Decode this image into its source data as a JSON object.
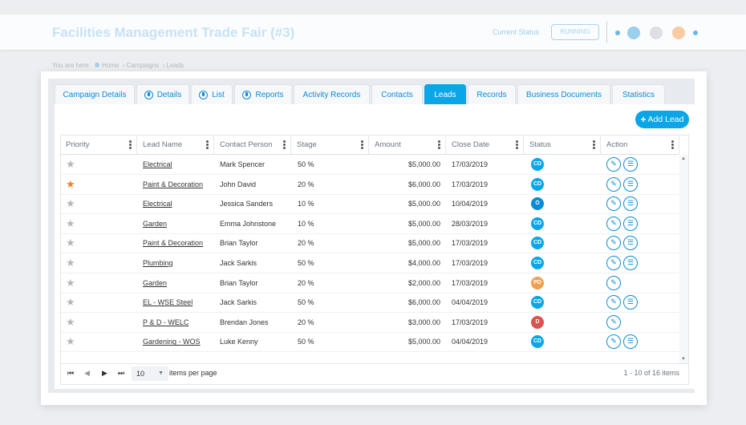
{
  "header": {
    "title": "Facilities Management Trade Fair (#3)",
    "status_label": "Current Status",
    "status_value": "RUNNING"
  },
  "breadcrumb": {
    "prefix": "You are here:",
    "items": [
      "Home",
      "Campaigns",
      "Leads"
    ]
  },
  "tabs": [
    {
      "label": "Campaign Details",
      "icon": "none",
      "active": false
    },
    {
      "label": "Details",
      "icon": "globe-icon",
      "active": false
    },
    {
      "label": "List",
      "icon": "globe-icon",
      "active": false
    },
    {
      "label": "Reports",
      "icon": "globe-icon",
      "active": false
    },
    {
      "label": "Activity Records",
      "icon": "none",
      "active": false
    },
    {
      "label": "Contacts",
      "icon": "none",
      "active": false
    },
    {
      "label": "Leads",
      "icon": "none",
      "active": true
    },
    {
      "label": "Records",
      "icon": "none",
      "active": false
    },
    {
      "label": "Business Documents",
      "icon": "none",
      "active": false
    },
    {
      "label": "Statistics",
      "icon": "none",
      "active": false
    }
  ],
  "add_button": {
    "label": "Add Lead"
  },
  "table": {
    "columns": [
      "Priority",
      "Lead Name",
      "Contact Person",
      "Stage",
      "Amount",
      "Close Date",
      "Status",
      "Action"
    ],
    "rows": [
      {
        "starred": false,
        "lead": "Electrical",
        "contact": "Mark Spencer",
        "stage": "50 %",
        "amount": "$5,000.00",
        "close": "17/03/2019",
        "status": "CD",
        "status_color": "#0aa6e8",
        "actions": [
          "edit",
          "list"
        ]
      },
      {
        "starred": true,
        "lead": "Paint & Decoration",
        "contact": "John David",
        "stage": "20 %",
        "amount": "$6,000.00",
        "close": "17/03/2019",
        "status": "CD",
        "status_color": "#0aa6e8",
        "actions": [
          "edit",
          "list"
        ]
      },
      {
        "starred": false,
        "lead": "Electrical",
        "contact": "Jessica Sanders",
        "stage": "10 %",
        "amount": "$5,000.00",
        "close": "10/04/2019",
        "status": "O",
        "status_color": "#0a8bd6",
        "actions": [
          "edit",
          "list"
        ]
      },
      {
        "starred": false,
        "lead": "Garden",
        "contact": "Emma Johnstone",
        "stage": "10 %",
        "amount": "$5,000.00",
        "close": "28/03/2019",
        "status": "CD",
        "status_color": "#0aa6e8",
        "actions": [
          "edit",
          "list"
        ]
      },
      {
        "starred": false,
        "lead": "Paint & Decoration",
        "contact": "Brian Taylor",
        "stage": "20 %",
        "amount": "$5,000.00",
        "close": "17/03/2019",
        "status": "CD",
        "status_color": "#0aa6e8",
        "actions": [
          "edit",
          "list"
        ]
      },
      {
        "starred": false,
        "lead": "Plumbing",
        "contact": "Jack Sarkis",
        "stage": "50 %",
        "amount": "$4,000.00",
        "close": "17/03/2019",
        "status": "CD",
        "status_color": "#0aa6e8",
        "actions": [
          "edit",
          "list"
        ]
      },
      {
        "starred": false,
        "lead": "Garden",
        "contact": "Brian Taylor",
        "stage": "20 %",
        "amount": "$2,000.00",
        "close": "17/03/2019",
        "status": "PD",
        "status_color": "#f0a050",
        "actions": [
          "edit"
        ]
      },
      {
        "starred": false,
        "lead": "EL - WSE Steel",
        "contact": "Jack Sarkis",
        "stage": "50 %",
        "amount": "$6,000.00",
        "close": "04/04/2019",
        "status": "CD",
        "status_color": "#0aa6e8",
        "actions": [
          "edit",
          "list"
        ]
      },
      {
        "starred": false,
        "lead": "P & D - WELC",
        "contact": "Brendan Jones",
        "stage": "20 %",
        "amount": "$3,000.00",
        "close": "17/03/2019",
        "status": "D",
        "status_color": "#d9534f",
        "actions": [
          "edit"
        ]
      },
      {
        "starred": false,
        "lead": "Gardening - WOS",
        "contact": "Luke Kenny",
        "stage": "50 %",
        "amount": "$5,000.00",
        "close": "04/04/2019",
        "status": "CD",
        "status_color": "#0aa6e8",
        "actions": [
          "edit",
          "list"
        ]
      }
    ]
  },
  "pager": {
    "page_size": "10",
    "page_size_label": "items per page",
    "info": "1 - 10 of 16 items"
  }
}
